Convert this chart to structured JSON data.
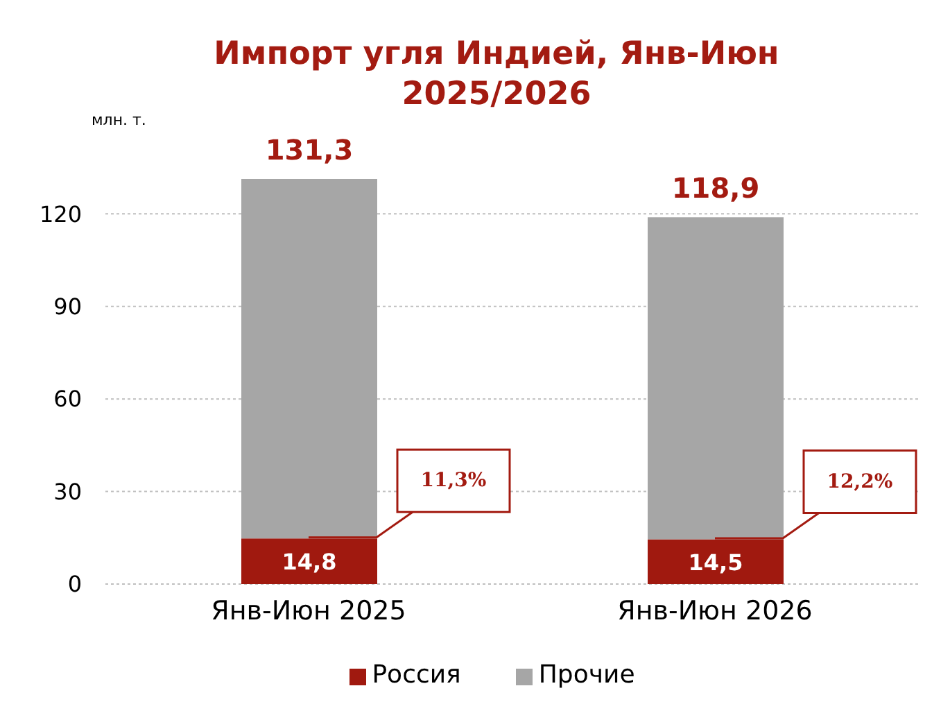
{
  "chart_data": {
    "type": "bar",
    "title": "Импорт угля Индией, Янв-Июн 2025/2026",
    "ylabel": "млн. т.",
    "categories": [
      "Янв-Июн 2025",
      "Янв-Июн 2026"
    ],
    "stacked": true,
    "series": [
      {
        "name": "Россия",
        "color": "#a0190f",
        "values": [
          14.8,
          14.5
        ],
        "value_labels": [
          "14,8",
          "14,5"
        ]
      },
      {
        "name": "Прочие",
        "color": "#a6a6a6",
        "values": [
          116.5,
          104.4
        ]
      }
    ],
    "totals": [
      "131,3",
      "118,9"
    ],
    "ylim": [
      0,
      131.3
    ],
    "yticks": [
      0,
      30,
      60,
      90,
      120
    ],
    "grid": "y",
    "legend": "bottom",
    "annotations": [
      {
        "text": "11,3%",
        "x": "Янв-Июн 2025",
        "y": 14.8
      },
      {
        "text": "12,2%",
        "x": "Янв-Июн 2026",
        "y": 14.5
      }
    ]
  }
}
